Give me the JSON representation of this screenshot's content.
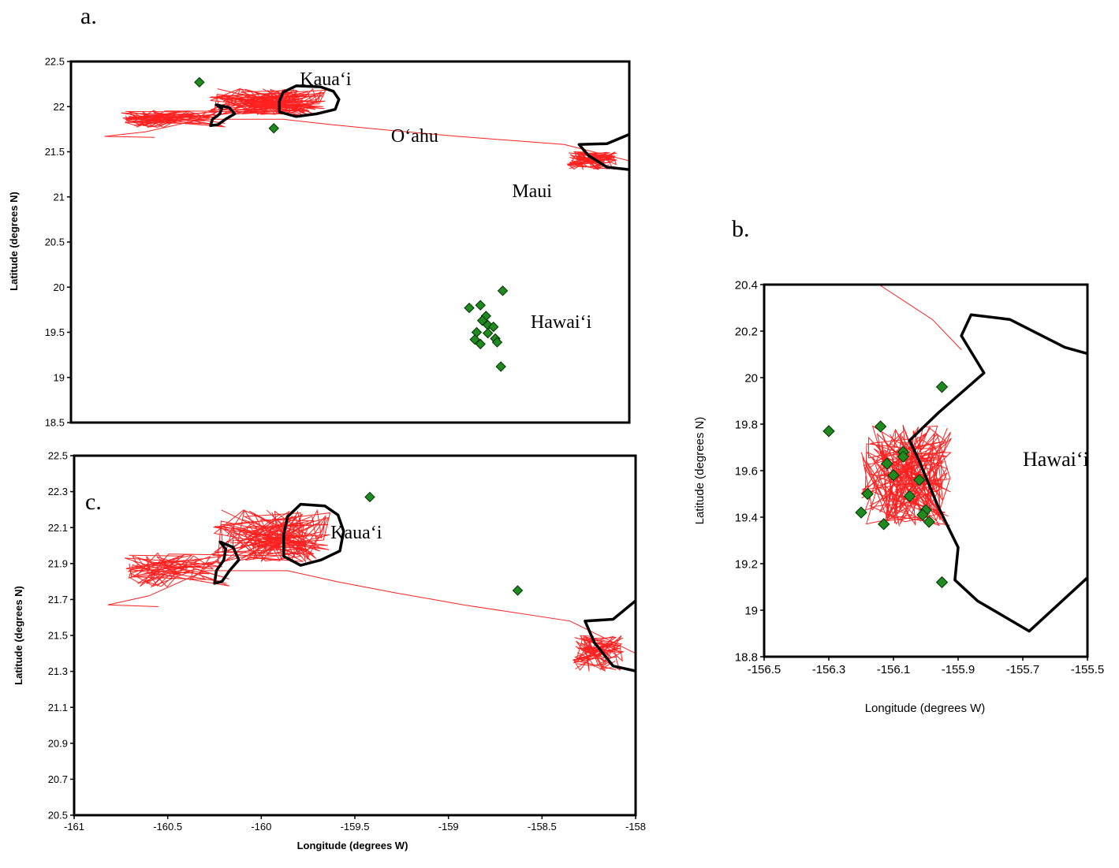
{
  "figure": {
    "colors": {
      "track": "#ff2020",
      "coast": "#000000",
      "marker_fill": "#1f8a1f",
      "marker_stroke": "#003300"
    }
  },
  "chart_data": [
    {
      "id": "a",
      "type": "scatter",
      "panel_label": "a.",
      "xlabel": "",
      "ylabel": "Latitude (degrees N)",
      "xlim": [
        -161,
        -158
      ],
      "ylim": [
        18.5,
        22.5
      ],
      "yticks": [
        "18.5",
        "19",
        "19.5",
        "20",
        "20.5",
        "21",
        "21.5",
        "22",
        "22.5"
      ],
      "xticks_shown": false,
      "island_labels": [
        {
          "text": "Kaua‘i",
          "lon": -159.77,
          "lat": 22.24
        },
        {
          "text": "O‘ahu",
          "lon": -159.28,
          "lat": 21.61
        },
        {
          "text": "Maui",
          "lon": -158.63,
          "lat": 21.0
        },
        {
          "text": "Hawai‘i",
          "lon": -158.53,
          "lat": 19.55
        }
      ],
      "markers": [
        {
          "lon": -160.31,
          "lat": 22.27
        },
        {
          "lon": -159.91,
          "lat": 21.76
        },
        {
          "lon": -158.68,
          "lat": 19.96
        },
        {
          "lon": -158.86,
          "lat": 19.77
        },
        {
          "lon": -158.8,
          "lat": 19.8
        },
        {
          "lon": -158.77,
          "lat": 19.68
        },
        {
          "lon": -158.79,
          "lat": 19.63
        },
        {
          "lon": -158.76,
          "lat": 19.58
        },
        {
          "lon": -158.73,
          "lat": 19.56
        },
        {
          "lon": -158.82,
          "lat": 19.5
        },
        {
          "lon": -158.76,
          "lat": 19.49
        },
        {
          "lon": -158.72,
          "lat": 19.43
        },
        {
          "lon": -158.71,
          "lat": 19.39
        },
        {
          "lon": -158.83,
          "lat": 19.42
        },
        {
          "lon": -158.8,
          "lat": 19.37
        },
        {
          "lon": -158.69,
          "lat": 19.12
        }
      ]
    },
    {
      "id": "b",
      "type": "scatter",
      "panel_label": "b.",
      "xlabel": "Longitude (degrees W)",
      "ylabel": "Latitude (degrees N)",
      "xlim": [
        -156.5,
        -155.5
      ],
      "ylim": [
        18.8,
        20.4
      ],
      "xticks": [
        "-156.5",
        "-156.3",
        "-156.1",
        "-155.9",
        "-155.7",
        "-155.5"
      ],
      "yticks": [
        "18.8",
        "19",
        "19.2",
        "19.4",
        "19.6",
        "19.8",
        "20",
        "20.2",
        "20.4"
      ],
      "island_labels": [
        {
          "text": "Hawai‘i",
          "lon": -155.7,
          "lat": 19.62
        }
      ],
      "markers": [
        {
          "lon": -155.95,
          "lat": 19.96
        },
        {
          "lon": -156.3,
          "lat": 19.77
        },
        {
          "lon": -156.14,
          "lat": 19.79
        },
        {
          "lon": -156.07,
          "lat": 19.68
        },
        {
          "lon": -156.07,
          "lat": 19.66
        },
        {
          "lon": -156.12,
          "lat": 19.63
        },
        {
          "lon": -156.1,
          "lat": 19.58
        },
        {
          "lon": -156.02,
          "lat": 19.56
        },
        {
          "lon": -156.18,
          "lat": 19.5
        },
        {
          "lon": -156.05,
          "lat": 19.49
        },
        {
          "lon": -156.0,
          "lat": 19.43
        },
        {
          "lon": -156.01,
          "lat": 19.41
        },
        {
          "lon": -155.99,
          "lat": 19.38
        },
        {
          "lon": -156.2,
          "lat": 19.42
        },
        {
          "lon": -156.13,
          "lat": 19.37
        },
        {
          "lon": -155.95,
          "lat": 19.12
        }
      ]
    },
    {
      "id": "c",
      "type": "scatter",
      "panel_label": "c.",
      "xlabel": "Longitude (degrees W)",
      "ylabel": "Latitude (degrees N)",
      "xlim": [
        -161,
        -158
      ],
      "ylim": [
        20.5,
        22.5
      ],
      "xticks": [
        "-161",
        "-160.5",
        "-160",
        "-159.5",
        "-159",
        "-158.5",
        "-158"
      ],
      "yticks": [
        "20.5",
        "20.7",
        "20.9",
        "21.1",
        "21.3",
        "21.5",
        "21.7",
        "21.9",
        "22.1",
        "22.3",
        "22.5"
      ],
      "island_labels": [
        {
          "text": "Kaua‘i",
          "lon": -159.63,
          "lat": 22.04
        }
      ],
      "markers": [
        {
          "lon": -159.42,
          "lat": 22.27
        },
        {
          "lon": -158.63,
          "lat": 21.75
        }
      ]
    }
  ]
}
